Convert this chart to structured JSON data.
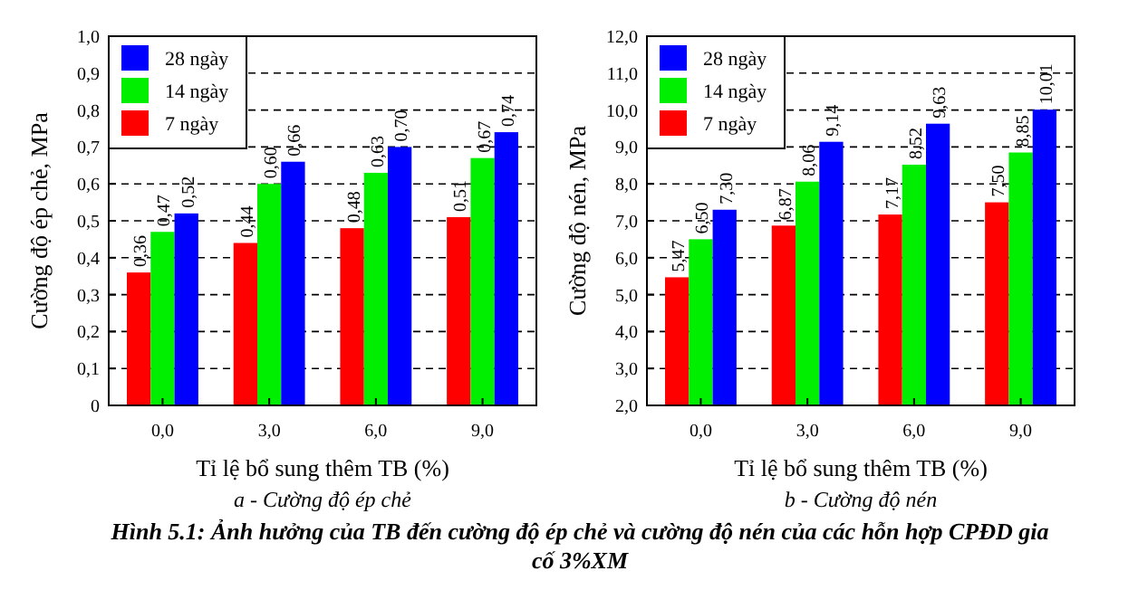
{
  "chart_data": [
    {
      "type": "bar",
      "subtitle": "a - Cường độ ép chẻ",
      "xlabel": "Tỉ lệ bổ sung thêm TB (%)",
      "ylabel": "Cường độ  ép chẻ, MPa",
      "categories": [
        "0,0",
        "3,0",
        "6,0",
        "9,0"
      ],
      "series": [
        {
          "name": "7 ngày",
          "color": "#ff0000",
          "values": [
            0.36,
            0.44,
            0.48,
            0.51
          ],
          "value_labels": [
            "0,36",
            "0,44",
            "0,48",
            "0,51"
          ]
        },
        {
          "name": "14 ngày",
          "color": "#00ee00",
          "values": [
            0.47,
            0.6,
            0.63,
            0.67
          ],
          "value_labels": [
            "0,47",
            "0,60",
            "0,63",
            "0,67"
          ]
        },
        {
          "name": "28 ngày",
          "color": "#0000ff",
          "values": [
            0.52,
            0.66,
            0.7,
            0.74
          ],
          "value_labels": [
            "0,52",
            "0,66",
            "0,70",
            "0,74"
          ]
        }
      ],
      "ylim": [
        0,
        1
      ],
      "yticks": [
        0,
        {
          "value": 0.1,
          "label": "0,1"
        },
        {
          "value": 0.2,
          "label": "0,2"
        },
        {
          "value": 0.3,
          "label": "0,3"
        },
        {
          "value": 0.4,
          "label": "0,4"
        },
        {
          "value": 0.5,
          "label": "0,5"
        },
        {
          "value": 0.6,
          "label": "0,6"
        },
        {
          "value": 0.7,
          "label": "0,7"
        },
        {
          "value": 0.8,
          "label": "0,8"
        },
        {
          "value": 0.9,
          "label": "0,9"
        },
        {
          "value": 1,
          "label": "1,0"
        }
      ],
      "grid": "y",
      "legend": "top left"
    },
    {
      "type": "bar",
      "subtitle": "b - Cường độ nén",
      "xlabel": "Tỉ lệ bổ sung thêm TB (%)",
      "ylabel": "Cường độ nén, MPa",
      "categories": [
        "0,0",
        "3,0",
        "6,0",
        "9,0"
      ],
      "series": [
        {
          "name": "7 ngày",
          "color": "#ff0000",
          "values": [
            5.47,
            6.87,
            7.17,
            7.5
          ],
          "value_labels": [
            "5,47",
            "6,87",
            "7,17",
            "7,50"
          ]
        },
        {
          "name": "14 ngày",
          "color": "#00ee00",
          "values": [
            6.5,
            8.06,
            8.52,
            8.85
          ],
          "value_labels": [
            "6,50",
            "8,06",
            "8,52",
            "8,85"
          ]
        },
        {
          "name": "28 ngày",
          "color": "#0000ff",
          "values": [
            7.3,
            9.14,
            9.63,
            10.01
          ],
          "value_labels": [
            "7,30",
            "9,14",
            "9,63",
            "10,01"
          ]
        }
      ],
      "ylim": [
        2,
        12
      ],
      "yticks": [
        {
          "value": 2,
          "label": "2,0"
        },
        {
          "value": 3,
          "label": "3,0"
        },
        {
          "value": 4,
          "label": "4,0"
        },
        {
          "value": 5,
          "label": "5,0"
        },
        {
          "value": 6,
          "label": "6,0"
        },
        {
          "value": 7,
          "label": "7,0"
        },
        {
          "value": 8,
          "label": "8,0"
        },
        {
          "value": 9,
          "label": "9,0"
        },
        {
          "value": 10,
          "label": "10,0"
        },
        {
          "value": 11,
          "label": "11,0"
        },
        {
          "value": 12,
          "label": "12,0"
        }
      ],
      "grid": "y",
      "legend": "top left",
      "annotations": [
        "Hình 5.1: Ảnh hưởng của TB đến cường độ ép chẻ và cường độ nén của các hỗn hợp  CPĐD gia cố 3%XM"
      ]
    }
  ]
}
